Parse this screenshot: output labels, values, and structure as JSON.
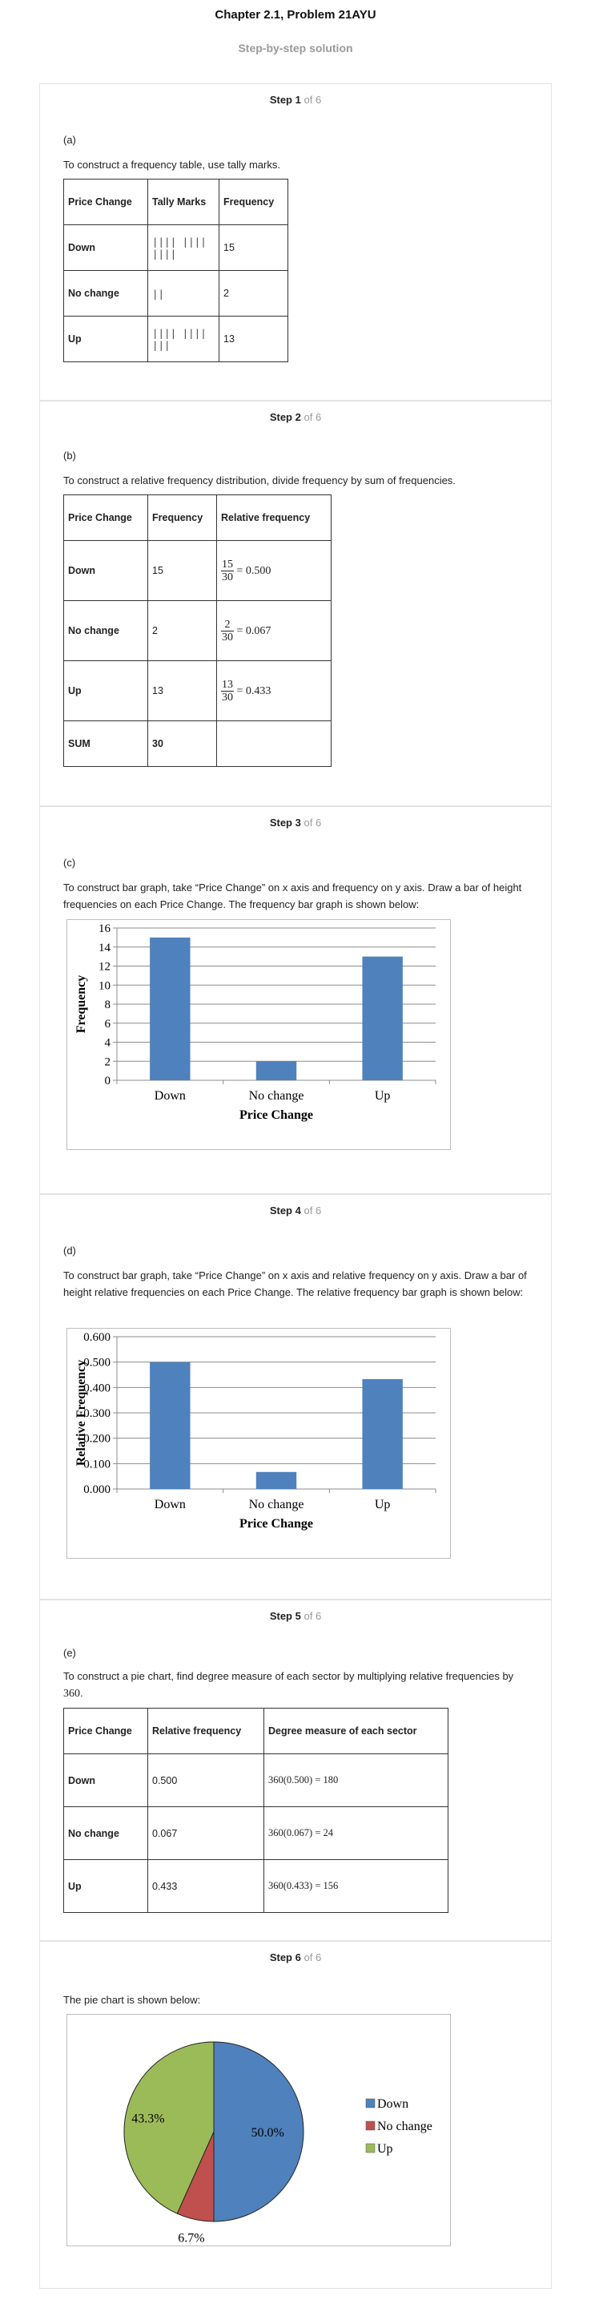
{
  "header": {
    "title": "Chapter 2.1, Problem 21AYU",
    "subtitle": "Step-by-step solution"
  },
  "step_word": "Step",
  "of_text": "of 6",
  "steps": [
    {
      "num": "1",
      "part": "(a)",
      "text": "To construct a frequency table, use tally marks.",
      "table": {
        "headers": [
          "Price Change",
          "Tally Marks",
          "Frequency"
        ],
        "rows": [
          [
            "Down",
            "|||| |||| ||||",
            "15"
          ],
          [
            "No change",
            "||",
            "2"
          ],
          [
            "Up",
            "|||| |||| |||",
            "13"
          ]
        ]
      }
    },
    {
      "num": "2",
      "part": "(b)",
      "text": "To construct a relative frequency distribution, divide frequency by sum of frequencies.",
      "table": {
        "headers": [
          "Price Change",
          "Frequency",
          "Relative frequency"
        ],
        "rows": [
          {
            "label": "Down",
            "freq": "15",
            "num": "15",
            "den": "30",
            "result": "= 0.500"
          },
          {
            "label": "No change",
            "freq": "2",
            "num": "2",
            "den": "30",
            "result": "= 0.067"
          },
          {
            "label": "Up",
            "freq": "13",
            "num": "13",
            "den": "30",
            "result": "= 0.433"
          }
        ],
        "sum_label": "SUM",
        "sum_value": "30"
      }
    },
    {
      "num": "3",
      "part": "(c)",
      "text": "To construct bar graph, take “Price Change” on x axis and frequency on y axis. Draw a bar of height frequencies on each Price Change. The frequency bar graph is shown below:"
    },
    {
      "num": "4",
      "part": "(d)",
      "text": "To construct bar graph, take “Price Change” on x axis and relative frequency on y axis. Draw a bar of height relative frequencies on each Price Change. The relative frequency bar graph is shown below:"
    },
    {
      "num": "5",
      "part": "(e)",
      "text_before": "To construct a pie chart, find degree measure of each sector by multiplying relative frequencies by",
      "text_value": "360",
      "text_after": ".",
      "table": {
        "headers": [
          "Price Change",
          "Relative frequency",
          "Degree measure of each sector"
        ],
        "rows": [
          [
            "Down",
            "0.500",
            "360(0.500) = 180"
          ],
          [
            "No change",
            "0.067",
            "360(0.067) = 24"
          ],
          [
            "Up",
            "0.433",
            "360(0.433) = 156"
          ]
        ]
      }
    },
    {
      "num": "6",
      "text": "The pie chart is shown below:"
    }
  ],
  "colors": {
    "bar": "#4f81bd",
    "pie_down": "#4f81bd",
    "pie_no_change": "#c0504d",
    "pie_up": "#9bbb59"
  },
  "chart_data": [
    {
      "type": "bar",
      "categories": [
        "Down",
        "No change",
        "Up"
      ],
      "values": [
        15,
        2,
        13
      ],
      "xlabel": "Price Change",
      "ylabel": "Frequency",
      "ylim": [
        0,
        16
      ],
      "yticks": [
        "0",
        "2",
        "4",
        "6",
        "8",
        "10",
        "12",
        "14",
        "16"
      ],
      "grid": true
    },
    {
      "type": "bar",
      "categories": [
        "Down",
        "No change",
        "Up"
      ],
      "values": [
        0.5,
        0.067,
        0.433
      ],
      "xlabel": "Price Change",
      "ylabel": "Relative Frequency",
      "ylim": [
        0,
        0.6
      ],
      "yticks": [
        "0.000",
        "0.100",
        "0.200",
        "0.300",
        "0.400",
        "0.500",
        "0.600"
      ],
      "grid": true
    },
    {
      "type": "pie",
      "labels": [
        "Down",
        "No change",
        "Up"
      ],
      "values": [
        50.0,
        6.7,
        43.3
      ],
      "data_labels": [
        "50.0%",
        "6.7%",
        "43.3%"
      ],
      "legend": "right"
    }
  ]
}
